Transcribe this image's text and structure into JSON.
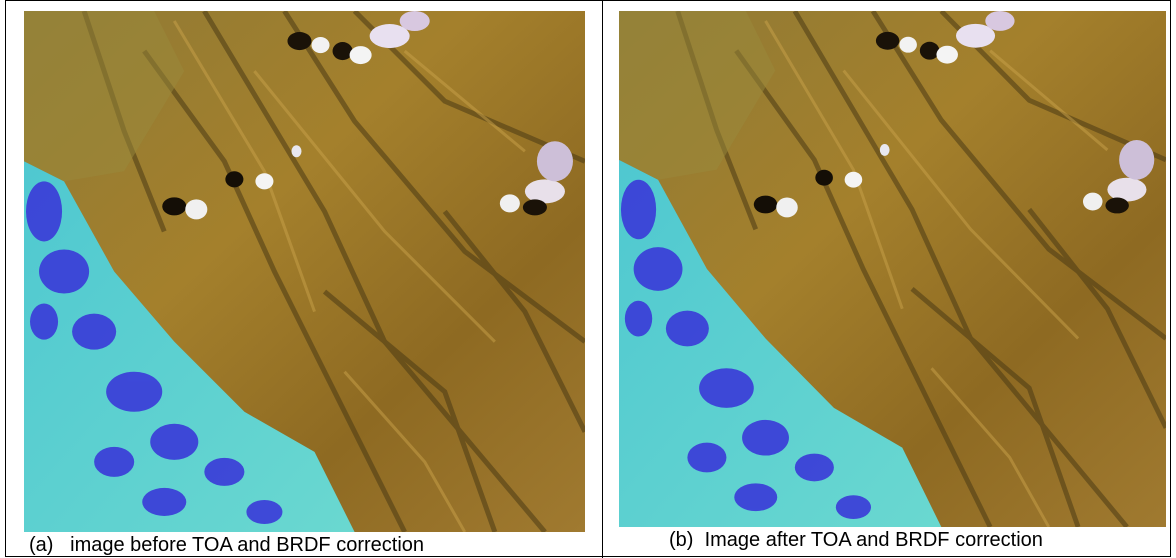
{
  "figure": {
    "panels": [
      {
        "label": "(a)",
        "caption": "image before TOA and BRDF correction"
      },
      {
        "label": "(b)",
        "caption": "Image after TOA and BRDF correction"
      }
    ]
  }
}
